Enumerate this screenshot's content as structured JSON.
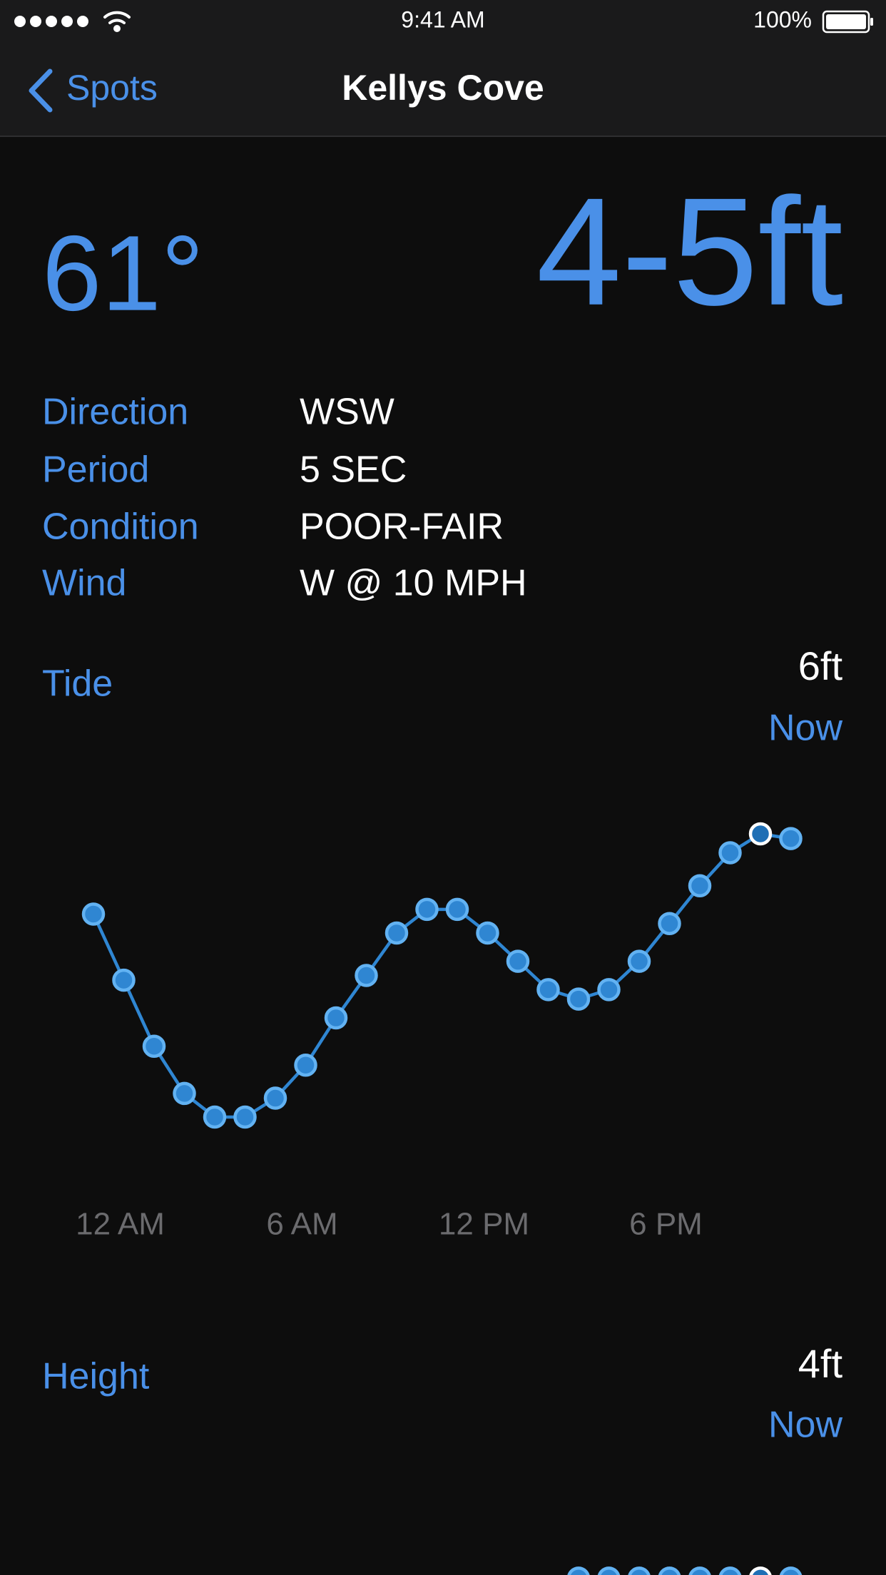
{
  "status_bar": {
    "time": "9:41 AM",
    "battery": "100%"
  },
  "nav": {
    "back": "Spots",
    "title": "Kellys Cove"
  },
  "summary": {
    "temperature": "61°",
    "surf": "4-5ft"
  },
  "details": [
    {
      "label": "Direction",
      "value": "WSW"
    },
    {
      "label": "Period",
      "value": "5 SEC"
    },
    {
      "label": "Condition",
      "value": "POOR-FAIR"
    },
    {
      "label": "Wind",
      "value": "W @ 10 MPH"
    }
  ],
  "chart_data": [
    {
      "type": "line",
      "title": "Tide",
      "current_value": "6ft",
      "current_label": "Now",
      "categories": [
        null,
        "12 AM",
        null,
        null,
        null,
        null,
        null,
        "6 AM",
        null,
        null,
        null,
        null,
        null,
        "12 PM",
        null,
        null,
        null,
        null,
        null,
        "6 PM",
        null,
        null,
        null,
        null
      ],
      "values": [
        4.3,
        2.9,
        1.5,
        0.5,
        0,
        0,
        0.4,
        1.1,
        2.1,
        3.0,
        3.9,
        4.4,
        4.4,
        3.9,
        3.3,
        2.7,
        2.5,
        2.7,
        3.3,
        4.1,
        4.9,
        5.6,
        6,
        5.9
      ],
      "ylim": [
        0,
        6
      ],
      "highlight_index": 22,
      "color": "#2f86d2"
    },
    {
      "type": "line",
      "title": "Height",
      "current_value": "4ft",
      "current_label": "Now",
      "values": [
        null,
        null,
        null,
        null,
        null,
        null,
        null,
        null,
        null,
        null,
        null,
        null,
        null,
        null,
        null,
        null,
        4,
        4,
        4,
        4,
        4,
        4,
        4,
        4
      ],
      "ylim": [
        0,
        6
      ],
      "highlight_index": 22,
      "color": "#2f86d2"
    }
  ]
}
